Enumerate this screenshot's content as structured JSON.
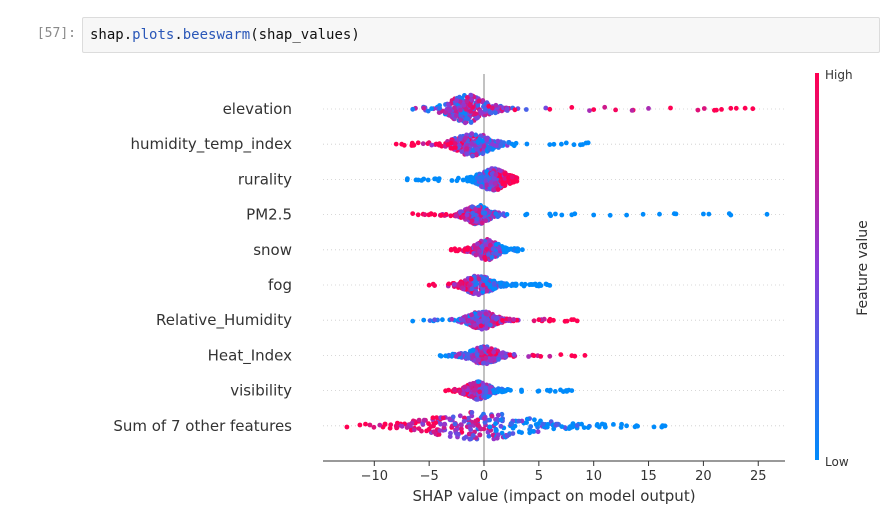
{
  "cell": {
    "prompt": "[57]:",
    "code_parts": {
      "var": "shap",
      "dot1": ".",
      "mod": "plots",
      "dot2": ".",
      "fn": "beeswarm",
      "open": "(",
      "arg": "shap_values",
      "close": ")"
    }
  },
  "chart_data": {
    "type": "scatter",
    "subtype": "shap-beeswarm",
    "title": "",
    "xlabel": "SHAP value (impact on model output)",
    "ylabel": "",
    "xlim": [
      -14.5,
      27.5
    ],
    "xticks": [
      -10,
      -5,
      0,
      5,
      10,
      15,
      20,
      25
    ],
    "xtick_labels": [
      "−10",
      "−5",
      "0",
      "5",
      "10",
      "15",
      "20",
      "25"
    ],
    "colorbar": {
      "label": "Feature value",
      "high_label": "High",
      "low_label": "Low",
      "low_color": "#008bfb",
      "high_color": "#ff0052"
    },
    "zero_line": true,
    "features": [
      {
        "name": "elevation",
        "min": -6.5,
        "max": 24.5,
        "core_min": -3.5,
        "core_max": 2,
        "center": -1.5,
        "spread_high": 0.95,
        "red_side": "right",
        "outliers": [
          -6.5,
          -5.5,
          6,
          8,
          10,
          11,
          12,
          13.5,
          15,
          17,
          19.5,
          21,
          22.5,
          23,
          23.8,
          24.5
        ]
      },
      {
        "name": "humidity_temp_index",
        "min": -8,
        "max": 9.5,
        "core_min": -3,
        "core_max": 2,
        "center": -1,
        "spread_high": 0.8,
        "red_side": "left",
        "outliers": [
          -8,
          -7.5,
          -6,
          6,
          7.5,
          8.2,
          9.5
        ]
      },
      {
        "name": "rurality",
        "min": -7,
        "max": 3,
        "core_min": -1.5,
        "core_max": 2.5,
        "center": 0.8,
        "spread_high": 0.75,
        "red_side": "right",
        "outliers": [
          -7,
          -6.2,
          -5.5,
          -4.5
        ]
      },
      {
        "name": "PM2.5",
        "min": -6.5,
        "max": 25.8,
        "core_min": -2.5,
        "core_max": 1,
        "center": -0.6,
        "spread_high": 0.65,
        "red_side": "left",
        "outliers": [
          -6.5,
          -6,
          -4.5,
          6,
          8,
          10,
          11.5,
          13,
          14.5,
          16,
          17.5,
          20,
          20.5,
          22.5,
          25.8
        ]
      },
      {
        "name": "snow",
        "min": -3,
        "max": 3.5,
        "core_min": -1.5,
        "core_max": 1.8,
        "center": 0.3,
        "spread_high": 0.7,
        "red_side": "left",
        "outliers": [
          -3,
          3,
          3.5
        ]
      },
      {
        "name": "fog",
        "min": -5,
        "max": 6,
        "core_min": -2,
        "core_max": 2,
        "center": -0.5,
        "spread_high": 0.65,
        "red_side": "left",
        "outliers": [
          -5,
          -4.5,
          4.5,
          5.2,
          6
        ]
      },
      {
        "name": "Relative_Humidity",
        "min": -6.5,
        "max": 8.5,
        "core_min": -2,
        "core_max": 2,
        "center": -0.2,
        "spread_high": 0.6,
        "red_side": "right",
        "outliers": [
          -6.5,
          -5.5,
          -4.5,
          5,
          5.5,
          6,
          8.5
        ]
      },
      {
        "name": "Heat_Index",
        "min": -4,
        "max": 9.2,
        "core_min": -2,
        "core_max": 2,
        "center": 0,
        "spread_high": 0.6,
        "red_side": "right",
        "outliers": [
          -4,
          -3.5,
          6,
          7,
          8,
          9.2
        ]
      },
      {
        "name": "visibility",
        "min": -3.5,
        "max": 8,
        "core_min": -1.5,
        "core_max": 2,
        "center": -0.5,
        "spread_high": 0.6,
        "red_side": "left",
        "outliers": [
          -3.5,
          5,
          6,
          6.5,
          7.5,
          8
        ]
      },
      {
        "name": "Sum of 7 other features",
        "min": -12.5,
        "max": 16.5,
        "core_min": -7,
        "core_max": 8,
        "center": -0.5,
        "spread_high": 0.95,
        "red_side": "left",
        "outliers": [
          -12.5,
          -9.5,
          -8,
          8.5,
          9.5,
          10.5,
          11,
          11.8,
          12.5,
          13,
          14,
          15.5,
          16.5
        ]
      }
    ]
  }
}
